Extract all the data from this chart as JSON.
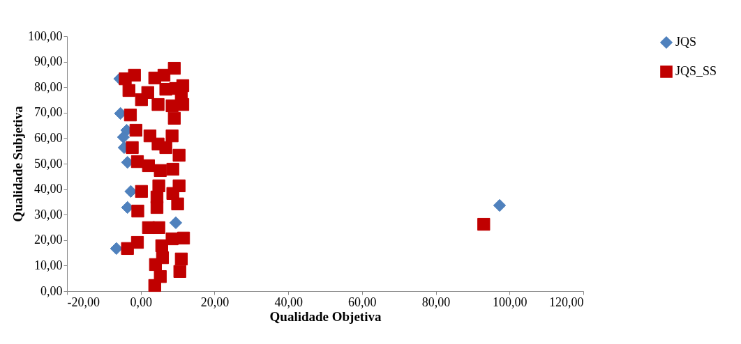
{
  "chart_data": {
    "type": "scatter",
    "xlabel": "Qualidade Objetiva",
    "ylabel": "Qualidade Subjetiva",
    "xlim": [
      -20,
      120
    ],
    "ylim": [
      0,
      100
    ],
    "xticks": [
      {
        "value": -20,
        "label": "-20,00"
      },
      {
        "value": 0,
        "label": "0,00"
      },
      {
        "value": 20,
        "label": "20,00"
      },
      {
        "value": 40,
        "label": "40,00"
      },
      {
        "value": 60,
        "label": "60,00"
      },
      {
        "value": 80,
        "label": "80,00"
      },
      {
        "value": 100,
        "label": "100,00"
      },
      {
        "value": 120,
        "label": "120,00"
      }
    ],
    "yticks": [
      {
        "value": 0,
        "label": "0,00"
      },
      {
        "value": 10,
        "label": "10,00"
      },
      {
        "value": 20,
        "label": "20,00"
      },
      {
        "value": 30,
        "label": "30,00"
      },
      {
        "value": 40,
        "label": "40,00"
      },
      {
        "value": 50,
        "label": "50,00"
      },
      {
        "value": 60,
        "label": "60,00"
      },
      {
        "value": 70,
        "label": "70,00"
      },
      {
        "value": 80,
        "label": "80,00"
      },
      {
        "value": 90,
        "label": "90,00"
      },
      {
        "value": 100,
        "label": "100,00"
      }
    ],
    "grid": false,
    "legend": "right",
    "series": [
      {
        "name": "JQS",
        "color": "#4f81bd",
        "marker": "diamond",
        "x": [
          97.3,
          -2.7,
          -3.6,
          9.5,
          -6.6,
          -5.7,
          -5.5,
          -3.8,
          -4.7,
          -4.5,
          -3.6
        ],
        "values": [
          33.6,
          39.1,
          32.8,
          26.8,
          16.7,
          83.3,
          69.7,
          63.1,
          60.4,
          56.3,
          50.5
        ]
      },
      {
        "name": "JQS_SS",
        "color": "#c00000",
        "marker": "square",
        "x": [
          93,
          -1.7,
          9.1,
          3.8,
          6.3,
          -3.2,
          -4.2,
          1.9,
          6.8,
          9.5,
          11.4,
          11,
          0.2,
          4.7,
          8.5,
          11.4,
          -2.8,
          9.1,
          -1.3,
          2.5,
          8.5,
          -2.3,
          6.8,
          4.7,
          10.4,
          -0.9,
          2.1,
          5.3,
          8.7,
          4.9,
          10.4,
          0.2,
          8.7,
          4.4,
          10,
          -0.8,
          4.4,
          2.1,
          4.9,
          8.5,
          11.6,
          -0.9,
          -3.6,
          5.7,
          5.9,
          11,
          4,
          10.6,
          5.3,
          3.8
        ],
        "values": [
          26.2,
          84.7,
          87.4,
          83.6,
          84.7,
          78.7,
          83.3,
          77.9,
          79.2,
          79.5,
          80.6,
          76,
          75.1,
          73.2,
          72.7,
          73.2,
          69.1,
          67.8,
          63.1,
          60.9,
          60.9,
          56.3,
          56.3,
          57.7,
          53.3,
          50.8,
          49.2,
          47.3,
          47.8,
          41.3,
          41.3,
          39.1,
          38.3,
          36.9,
          34.2,
          31.4,
          32.8,
          24.9,
          24.9,
          20.5,
          20.8,
          19.1,
          16.7,
          17.8,
          13.1,
          12.6,
          10.4,
          7.7,
          5.7,
          2.2
        ]
      }
    ]
  }
}
